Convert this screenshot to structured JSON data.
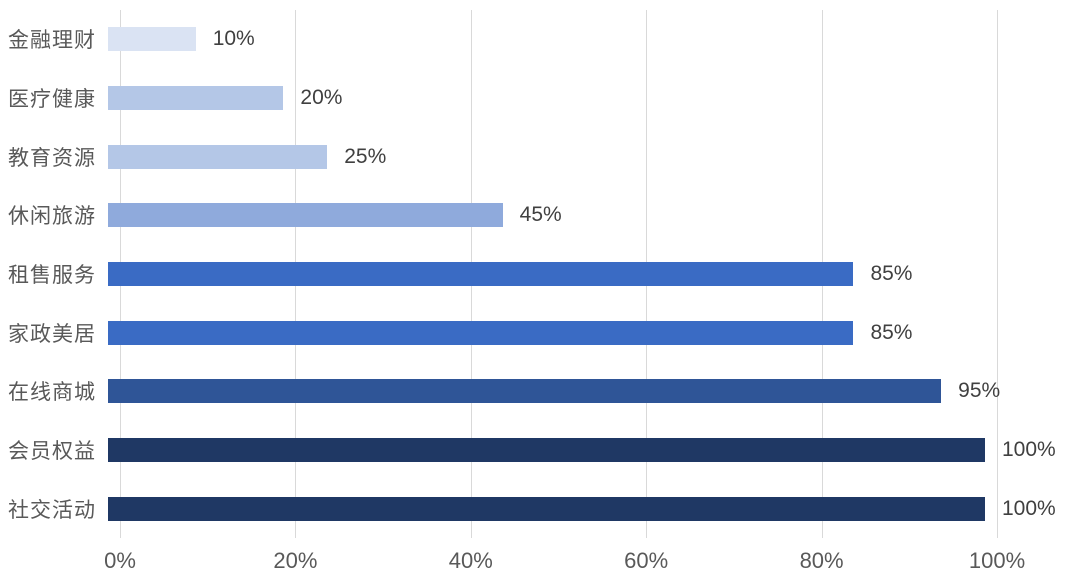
{
  "chart_data": {
    "type": "bar",
    "orientation": "horizontal",
    "title": "",
    "xlabel": "",
    "ylabel": "",
    "categories": [
      "金融理财",
      "医疗健康",
      "教育资源",
      "休闲旅游",
      "租售服务",
      "家政美居",
      "在线商城",
      "会员权益",
      "社交活动"
    ],
    "values": [
      10,
      20,
      25,
      45,
      85,
      85,
      95,
      100,
      100
    ],
    "value_labels": [
      "10%",
      "20%",
      "25%",
      "45%",
      "85%",
      "85%",
      "95%",
      "100%",
      "100%"
    ],
    "bar_colors": [
      "#dae3f3",
      "#b4c7e7",
      "#b4c7e7",
      "#8faadc",
      "#3a6bc4",
      "#3a6bc4",
      "#2f5597",
      "#1f3864",
      "#1f3864"
    ],
    "x_ticks": [
      "0%",
      "20%",
      "40%",
      "60%",
      "80%",
      "100%"
    ],
    "x_tick_values": [
      0,
      20,
      40,
      60,
      80,
      100
    ],
    "xlim": [
      0,
      100
    ],
    "grid": "vertical",
    "legend": "none",
    "colors": {
      "gridline": "#d9d9d9",
      "category_label_text": "#595959",
      "value_label_text": "#404040",
      "axis_tick_text": "#595959",
      "background": "#ffffff"
    }
  }
}
